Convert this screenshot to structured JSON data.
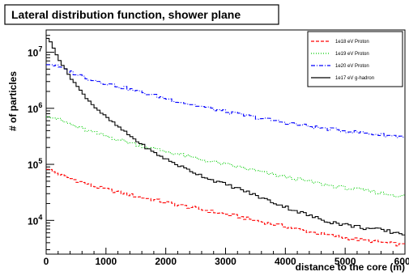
{
  "chart_data": {
    "type": "line",
    "title": "Lateral distribution function, shower plane",
    "xlabel": "distance to the core (m)",
    "ylabel": "# of particles",
    "xlim": [
      0,
      6000
    ],
    "ylim": [
      2500,
      25000000
    ],
    "yscale": "log",
    "legend_position": "top-right",
    "x_ticks": [
      0,
      1000,
      2000,
      3000,
      4000,
      5000,
      6000
    ],
    "y_ticks": [
      10000,
      100000,
      1000000,
      10000000
    ],
    "y_tick_labels": [
      {
        "base": "10",
        "exp": "4"
      },
      {
        "base": "10",
        "exp": "5"
      },
      {
        "base": "10",
        "exp": "6"
      },
      {
        "base": "10",
        "exp": "7"
      }
    ],
    "series": [
      {
        "name": "1e18 eV Proton",
        "color": "#ff0000",
        "style": "dashed",
        "x": [
          25,
          100,
          300,
          500,
          750,
          1000,
          1250,
          1500,
          1750,
          2000,
          2250,
          2500,
          2750,
          3000,
          3250,
          3500,
          3750,
          4000,
          4250,
          4500,
          4750,
          5000,
          5250,
          5500,
          5750,
          6000
        ],
        "y": [
          85000,
          75000,
          62000,
          52000,
          42000,
          36000,
          31000,
          27000,
          24000,
          21000,
          18500,
          16500,
          14500,
          13000,
          11500,
          10000,
          8800,
          7800,
          6800,
          6000,
          5400,
          4900,
          4500,
          4200,
          3900,
          3600
        ]
      },
      {
        "name": "1e19 eV Proton",
        "color": "#00cc00",
        "style": "dotted",
        "x": [
          25,
          100,
          300,
          500,
          750,
          1000,
          1250,
          1500,
          1750,
          2000,
          2250,
          2500,
          2750,
          3000,
          3250,
          3500,
          3750,
          4000,
          4250,
          4500,
          4750,
          5000,
          5250,
          5500,
          5750,
          6000
        ],
        "y": [
          750000,
          700000,
          580000,
          470000,
          380000,
          320000,
          270000,
          230000,
          195000,
          170000,
          148000,
          128000,
          112000,
          100000,
          88000,
          77000,
          67000,
          60000,
          53000,
          47000,
          42000,
          38000,
          35000,
          32000,
          29000,
          27000
        ]
      },
      {
        "name": "1e20 eV Proton",
        "color": "#0000ff",
        "style": "dashdot",
        "x": [
          25,
          100,
          300,
          500,
          750,
          1000,
          1250,
          1500,
          1750,
          2000,
          2250,
          2500,
          2750,
          3000,
          3250,
          3500,
          3750,
          4000,
          4250,
          4500,
          4750,
          5000,
          5250,
          5500,
          5750,
          6000
        ],
        "y": [
          6200000,
          6000000,
          5000000,
          4100000,
          3300000,
          2800000,
          2400000,
          2050000,
          1750000,
          1500000,
          1300000,
          1130000,
          990000,
          870000,
          770000,
          690000,
          620000,
          560000,
          505000,
          460000,
          425000,
          395000,
          370000,
          345000,
          325000,
          310000
        ]
      },
      {
        "name": "1e17 eV g-hadron",
        "color": "#000000",
        "style": "solid",
        "x": [
          25,
          75,
          150,
          250,
          400,
          600,
          800,
          1000,
          1250,
          1500,
          1750,
          2000,
          2250,
          2500,
          2750,
          3000,
          3250,
          3500,
          3750,
          4000,
          4250,
          4500,
          4750,
          5000,
          5250,
          5500,
          5750,
          6000
        ],
        "y": [
          18000000,
          15000000,
          10500000,
          6500000,
          3700000,
          1900000,
          1100000,
          700000,
          430000,
          270000,
          175000,
          125000,
          92000,
          70000,
          54000,
          44000,
          36000,
          28000,
          22000,
          17500,
          14000,
          11200,
          9500,
          8400,
          7600,
          6900,
          6300,
          5800
        ]
      }
    ]
  }
}
